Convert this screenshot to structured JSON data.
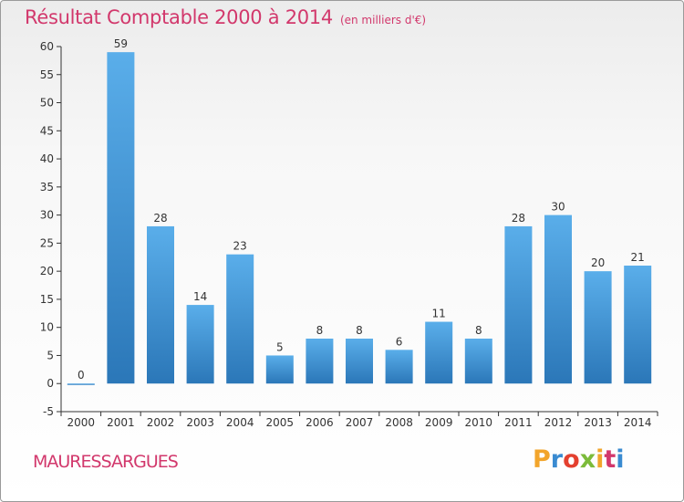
{
  "header": {
    "title": "Résultat Comptable 2000 à 2014",
    "unit": "(en milliers d'€)"
  },
  "footer": {
    "commune": "MAURESSARGUES",
    "brand": "Proxiti",
    "brand_colors": [
      "#f2a52b",
      "#3a8bd1",
      "#e4402f",
      "#7cbb3a",
      "#f2a52b",
      "#d2386c",
      "#3a8bd1"
    ]
  },
  "colors": {
    "title": "#d2386c",
    "bar_top": "#5aaeea",
    "bar_bottom": "#2b77b8",
    "axis": "#333333",
    "grid": "#cccccc"
  },
  "chart_data": {
    "type": "bar",
    "categories": [
      "2000",
      "2001",
      "2002",
      "2003",
      "2004",
      "2005",
      "2006",
      "2007",
      "2008",
      "2009",
      "2010",
      "2011",
      "2012",
      "2013",
      "2014"
    ],
    "values": [
      0,
      59,
      28,
      14,
      23,
      5,
      8,
      8,
      6,
      11,
      8,
      28,
      30,
      20,
      21
    ],
    "title": "Résultat Comptable 2000 à 2014",
    "subtitle": "(en milliers d'€)",
    "xlabel": "",
    "ylabel": "",
    "ylim": [
      -5,
      60
    ],
    "yticks": [
      -5,
      0,
      5,
      10,
      15,
      20,
      25,
      30,
      35,
      40,
      45,
      50,
      55,
      60
    ],
    "grid": false,
    "data_labels": true
  }
}
